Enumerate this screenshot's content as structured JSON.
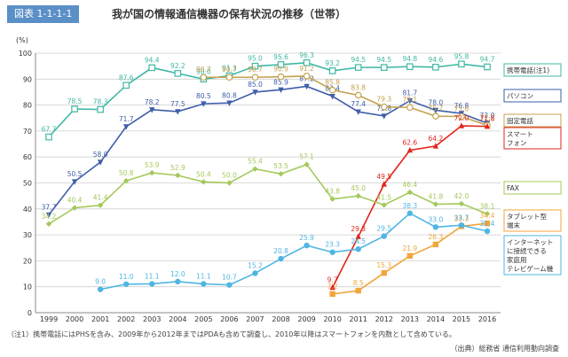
{
  "figure": {
    "badge": "図表 1-1-1-1",
    "title": "我が国の情報通信機器の保有状況の推移（世帯）",
    "note": "（注1）携帯電話にはPHSを含み、2009年から2012年まではPDAも含めて調査し、2010年以降はスマートフォンを内数として含めている。",
    "source": "（出典）総務省 通信利用動向調査"
  },
  "chart_data": {
    "type": "line",
    "title": "",
    "xlabel": "",
    "ylabel": "(%)",
    "ylim": [
      0,
      100
    ],
    "yticks": [
      0,
      10,
      20,
      30,
      40,
      50,
      60,
      70,
      80,
      90,
      100
    ],
    "grid": true,
    "categories": [
      "1999",
      "2000",
      "2001",
      "2002",
      "2003",
      "2004",
      "2005",
      "2006",
      "2007",
      "2008",
      "2009",
      "2010",
      "2011",
      "2012",
      "2013",
      "2014",
      "2015",
      "2016"
    ],
    "series": [
      {
        "name": "携帯電話(注1)",
        "color": "#3fb8a4",
        "marker": "square-open",
        "values": [
          67.7,
          78.5,
          78.3,
          87.6,
          94.4,
          92.2,
          90.0,
          91.3,
          95.0,
          95.6,
          96.3,
          93.2,
          94.5,
          94.5,
          94.8,
          94.6,
          95.8,
          94.7
        ]
      },
      {
        "name": "パソコン",
        "color": "#3e5ea9",
        "marker": "triangle-down",
        "values": [
          37.7,
          50.5,
          58.0,
          71.7,
          78.2,
          77.5,
          80.5,
          80.8,
          85.0,
          85.9,
          87.2,
          83.4,
          77.4,
          75.8,
          81.7,
          78.0,
          76.8,
          73.0
        ]
      },
      {
        "name": "固定電話",
        "color": "#c5a24e",
        "marker": "circle-open",
        "values": [
          null,
          null,
          null,
          null,
          null,
          null,
          90.7,
          90.7,
          90.7,
          90.9,
          91.2,
          85.8,
          83.8,
          79.3,
          79.1,
          75.7,
          75.6,
          72.2
        ]
      },
      {
        "name": "スマートフォン",
        "color": "#e1251b",
        "marker": "triangle-up",
        "values": [
          null,
          null,
          null,
          null,
          null,
          null,
          null,
          null,
          null,
          null,
          null,
          9.7,
          29.3,
          49.5,
          62.6,
          64.2,
          72.0,
          71.8
        ]
      },
      {
        "name": "FAX",
        "color": "#a3c95a",
        "marker": "diamond",
        "values": [
          34.2,
          40.4,
          41.4,
          50.8,
          53.9,
          52.9,
          50.4,
          50.0,
          55.4,
          53.5,
          57.1,
          43.8,
          45.0,
          41.5,
          46.4,
          41.8,
          42.0,
          38.1
        ]
      },
      {
        "name": "タブレット型端末",
        "color": "#f1a63b",
        "marker": "square",
        "values": [
          null,
          null,
          null,
          null,
          null,
          null,
          null,
          null,
          null,
          null,
          null,
          7.2,
          8.5,
          15.3,
          21.9,
          26.3,
          33.3,
          34.4
        ]
      },
      {
        "name": "インターネットに接続できる家庭用テレビゲーム機",
        "color": "#4fb5e3",
        "marker": "circle",
        "values": [
          null,
          null,
          9.0,
          11.0,
          11.1,
          12.0,
          11.1,
          10.7,
          15.2,
          20.8,
          25.9,
          23.3,
          24.5,
          29.5,
          38.3,
          33.0,
          33.7,
          31.4
        ]
      }
    ],
    "legend_labels": {
      "mobile": [
        "携帯電話(注1)"
      ],
      "pc": [
        "パソコン"
      ],
      "fixed": [
        "固定電話"
      ],
      "smart": [
        "スマート",
        "フォン"
      ],
      "fax": [
        "FAX"
      ],
      "tablet": [
        "タブレット型",
        "端末"
      ],
      "game": [
        "インターネット",
        "に接続できる",
        "家庭用",
        "テレビゲーム機"
      ]
    }
  }
}
